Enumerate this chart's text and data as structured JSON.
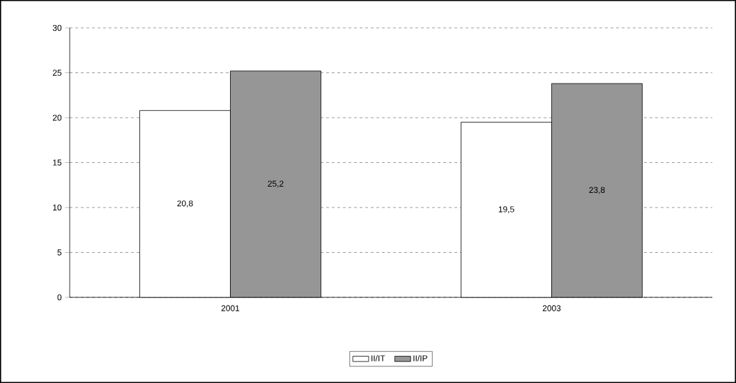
{
  "chart_data": {
    "type": "bar",
    "categories": [
      "2001",
      "2003"
    ],
    "series": [
      {
        "name": "II/IT",
        "color": "#ffffff",
        "values": [
          20.8,
          19.5
        ],
        "value_labels": [
          "20,8",
          "19,5"
        ]
      },
      {
        "name": "II/IP",
        "color": "#969696",
        "values": [
          25.2,
          23.8
        ],
        "value_labels": [
          "25,2",
          "23,8"
        ]
      }
    ],
    "ylim": [
      0,
      30
    ],
    "yticks": [
      0,
      5,
      10,
      15,
      20,
      25,
      30
    ],
    "grid": "y",
    "legend": "bottom"
  }
}
